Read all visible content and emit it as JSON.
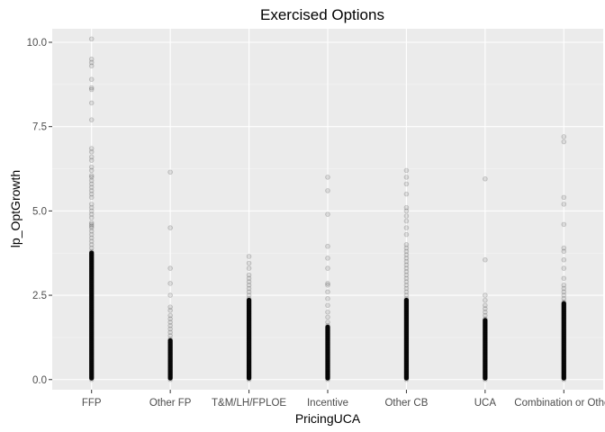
{
  "chart_data": {
    "type": "scatter",
    "title": "Exercised Options",
    "xlabel": "PricingUCA",
    "ylabel": "lp_OptGrowth",
    "categories": [
      "FFP",
      "Other FP",
      "T&M/LH/FPLOE",
      "Incentive",
      "Other CB",
      "UCA",
      "Combination or Other"
    ],
    "ylim": [
      -0.3,
      10.4
    ],
    "yticks": [
      0.0,
      2.5,
      5.0,
      7.5,
      10.0
    ],
    "ytick_labels": [
      "0.0",
      "2.5",
      "5.0",
      "7.5",
      "10.0"
    ],
    "grid": true,
    "series": [
      {
        "category": "FFP",
        "dense_max": 3.8,
        "outliers": [
          3.9,
          4.0,
          4.1,
          4.2,
          4.3,
          4.4,
          4.5,
          4.55,
          4.6,
          4.65,
          4.8,
          4.9,
          5.0,
          5.1,
          5.2,
          5.4,
          5.5,
          5.6,
          5.7,
          5.8,
          5.9,
          6.0,
          6.05,
          6.2,
          6.3,
          6.5,
          6.6,
          6.75,
          6.85,
          7.7,
          8.2,
          8.6,
          8.65,
          8.9,
          9.3,
          9.4,
          9.5,
          10.1
        ]
      },
      {
        "category": "Other FP",
        "dense_max": 1.2,
        "outliers": [
          1.3,
          1.4,
          1.5,
          1.6,
          1.7,
          1.8,
          1.9,
          2.05,
          2.15,
          2.5,
          2.85,
          3.3,
          4.5,
          6.15
        ]
      },
      {
        "category": "T&M/LH/FPLOE",
        "dense_max": 2.4,
        "outliers": [
          2.5,
          2.6,
          2.7,
          2.8,
          2.9,
          3.0,
          3.1,
          3.3,
          3.45,
          3.65
        ]
      },
      {
        "category": "Incentive",
        "dense_max": 1.6,
        "outliers": [
          1.7,
          1.85,
          2.0,
          2.2,
          2.4,
          2.6,
          2.8,
          2.85,
          3.3,
          3.6,
          3.95,
          4.9,
          5.6,
          6.0
        ]
      },
      {
        "category": "Other CB",
        "dense_max": 2.4,
        "outliers": [
          2.5,
          2.6,
          2.7,
          2.8,
          2.9,
          3.0,
          3.1,
          3.2,
          3.3,
          3.4,
          3.5,
          3.6,
          3.7,
          3.8,
          3.9,
          4.0,
          4.3,
          4.5,
          4.7,
          4.85,
          5.0,
          5.1,
          5.5,
          5.8,
          6.0,
          6.2
        ]
      },
      {
        "category": "UCA",
        "dense_max": 1.8,
        "outliers": [
          1.9,
          2.0,
          2.1,
          2.2,
          2.35,
          2.5,
          3.55,
          5.95
        ]
      },
      {
        "category": "Combination or Other",
        "dense_max": 2.3,
        "outliers": [
          2.4,
          2.5,
          2.6,
          2.7,
          2.8,
          3.0,
          3.3,
          3.55,
          3.8,
          3.9,
          4.6,
          5.2,
          5.4,
          7.05,
          7.2
        ]
      }
    ]
  }
}
